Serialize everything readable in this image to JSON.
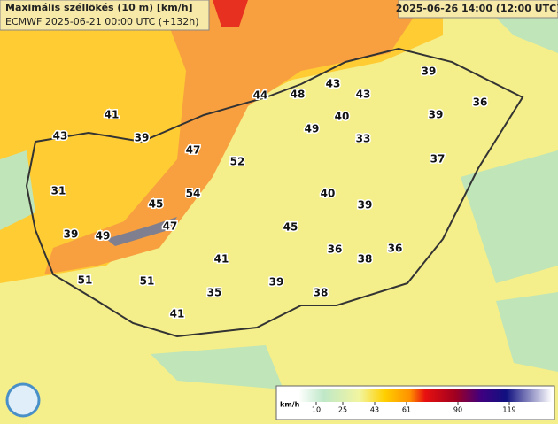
{
  "header": {
    "title": "Maximális széllökés (10 m) [km/h]",
    "model": "ECMWF 2025-06-21 00:00 UTC (+132h)",
    "valid": "2025-06-26 14:00 (12:00 UTC)"
  },
  "stations": [
    48,
    43,
    43,
    44,
    39,
    39,
    36,
    41,
    43,
    39,
    40,
    49,
    33,
    47,
    52,
    37,
    31,
    54,
    40,
    45,
    39,
    47,
    45,
    39,
    49,
    36,
    36,
    41,
    38,
    51,
    51,
    39,
    35,
    38,
    41
  ],
  "legend": {
    "unit": "km/h",
    "ticks": [
      10,
      25,
      43,
      61,
      90,
      119
    ]
  }
}
